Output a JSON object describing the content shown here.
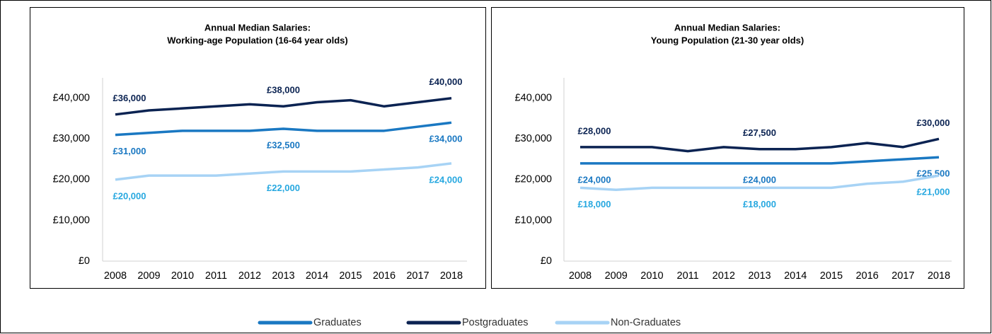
{
  "chart_data": [
    {
      "type": "line",
      "title": [
        "Annual Median Salaries:",
        "Working-age Population (16-64 year olds)"
      ],
      "categories": [
        "2008",
        "2009",
        "2010",
        "2011",
        "2012",
        "2013",
        "2014",
        "2015",
        "2016",
        "2017",
        "2018"
      ],
      "ylim": [
        0,
        45000
      ],
      "yticks": [
        {
          "value": 0,
          "label": "£0"
        },
        {
          "value": 10000,
          "label": "£10,000"
        },
        {
          "value": 20000,
          "label": "£20,000"
        },
        {
          "value": 30000,
          "label": "£30,000"
        },
        {
          "value": 40000,
          "label": "£40,000"
        }
      ],
      "series": [
        {
          "name": "Graduates",
          "color": "#1a78c2",
          "label_color": "#1a78c2",
          "values": [
            31000,
            31500,
            32000,
            32000,
            32000,
            32500,
            32000,
            32000,
            32000,
            33000,
            34000
          ],
          "value_labels": [
            "£31,000",
            null,
            null,
            null,
            null,
            "£32,500",
            null,
            null,
            null,
            null,
            "£34,000"
          ]
        },
        {
          "name": "Postgraduates",
          "color": "#0b2352",
          "label_color": "#0b2352",
          "values": [
            36000,
            37000,
            37500,
            38000,
            38500,
            38000,
            39000,
            39500,
            38000,
            39000,
            40000
          ],
          "value_labels": [
            "£36,000",
            null,
            null,
            null,
            null,
            "£38,000",
            null,
            null,
            null,
            null,
            "£40,000"
          ]
        },
        {
          "name": "Non-Graduates",
          "color": "#a7d3f5",
          "label_color": "#27a8e0",
          "values": [
            20000,
            21000,
            21000,
            21000,
            21500,
            22000,
            22000,
            22000,
            22500,
            23000,
            24000
          ],
          "value_labels": [
            "£20,000",
            null,
            null,
            null,
            null,
            "£22,000",
            null,
            null,
            null,
            null,
            "£24,000"
          ]
        }
      ]
    },
    {
      "type": "line",
      "title": [
        "Annual Median Salaries:",
        "Young Population (21-30 year olds)"
      ],
      "categories": [
        "2008",
        "2009",
        "2010",
        "2011",
        "2012",
        "2013",
        "2014",
        "2015",
        "2016",
        "2017",
        "2018"
      ],
      "ylim": [
        0,
        45000
      ],
      "yticks": [
        {
          "value": 0,
          "label": "£0"
        },
        {
          "value": 10000,
          "label": "£10,000"
        },
        {
          "value": 20000,
          "label": "£20,000"
        },
        {
          "value": 30000,
          "label": "£30,000"
        },
        {
          "value": 40000,
          "label": "£40,000"
        }
      ],
      "series": [
        {
          "color": "#1a78c2",
          "label_color": "#1a78c2",
          "values": [
            24000,
            24000,
            24000,
            24000,
            24000,
            24000,
            24000,
            24000,
            24500,
            25000,
            25500
          ],
          "value_labels": [
            "£24,000",
            null,
            null,
            null,
            null,
            "£24,000",
            null,
            null,
            null,
            null,
            "£25,500"
          ]
        },
        {
          "color": "#0b2352",
          "label_color": "#0b2352",
          "values": [
            28000,
            28000,
            28000,
            27000,
            28000,
            27500,
            27500,
            28000,
            29000,
            28000,
            30000
          ],
          "value_labels": [
            "£28,000",
            null,
            null,
            null,
            null,
            "£27,500",
            null,
            null,
            null,
            null,
            "£30,000"
          ]
        },
        {
          "color": "#a7d3f5",
          "label_color": "#27a8e0",
          "values": [
            18000,
            17500,
            18000,
            18000,
            18000,
            18000,
            18000,
            18000,
            19000,
            19500,
            21000
          ],
          "value_labels": [
            "£18,000",
            null,
            null,
            null,
            null,
            "£18,000",
            null,
            null,
            null,
            null,
            "£21,000"
          ]
        }
      ]
    }
  ]
}
